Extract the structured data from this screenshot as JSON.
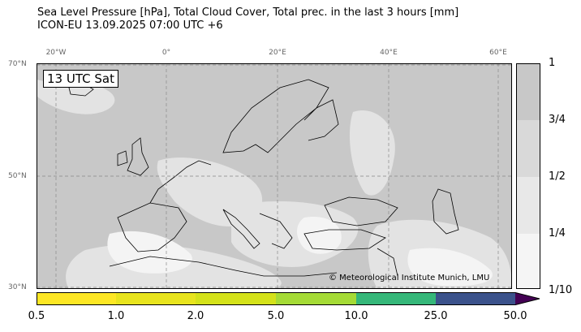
{
  "header": {
    "title_line1": "Sea Level Pressure [hPa], Total Cloud Cover, Total prec. in the last 3 hours [mm]",
    "title_line2": "ICON-EU 13.09.2025 07:00 UTC +6"
  },
  "map": {
    "time_label": "13 UTC Sat",
    "credit": "© Meteorological Institute Munich, LMU",
    "lon_labels": [
      "20°W",
      "0°",
      "20°E",
      "40°E",
      "60°E"
    ],
    "lat_labels": [
      "70°N",
      "50°N",
      "30°N"
    ]
  },
  "cloud_cover_colorbar": {
    "labels": [
      "1",
      "3/4",
      "1/2",
      "1/4",
      "1/10"
    ],
    "colors": [
      "#c8c8c8",
      "#d9d9d9",
      "#e8e8e8",
      "#f5f5f5"
    ]
  },
  "precip_colorbar": {
    "labels": [
      "0.5",
      "1.0",
      "2.0",
      "5.0",
      "10.0",
      "25.0",
      "50.0"
    ],
    "colors": [
      "#fde725",
      "#e8e41e",
      "#d4e21a",
      "#a5db36",
      "#35b779",
      "#3b528b",
      "#440154"
    ]
  },
  "colors": {
    "land_cloud": "#c8c8c8",
    "sea_clear": "#f0f0f0",
    "coast": "#000000",
    "grid": "#888888"
  }
}
